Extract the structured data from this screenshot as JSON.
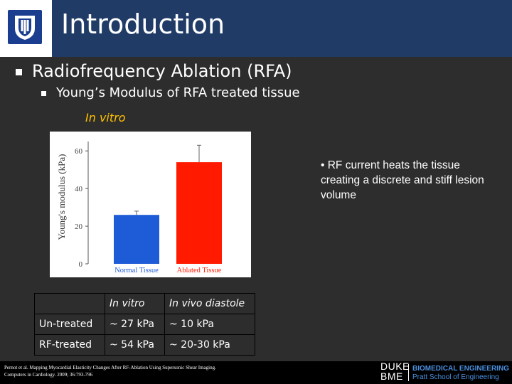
{
  "header": {
    "title": "Introduction"
  },
  "bullets": {
    "level1": "Radiofrequency Ablation (RFA)",
    "level2": "Young’s Modulus of RFA treated tissue"
  },
  "figure_label": "In vitro",
  "chart_data": {
    "type": "bar",
    "categories": [
      "Normal Tissue",
      "Ablated Tissue"
    ],
    "values": [
      26,
      54
    ],
    "error_top": [
      28,
      63
    ],
    "bar_colors": [
      "#1e5bd6",
      "#ff1a00"
    ],
    "ylabel": "Young's modulus (kPa)",
    "yticks": [
      0,
      20,
      40,
      60
    ],
    "ylim": [
      0,
      65
    ]
  },
  "note": "• RF current heats the tissue creating a discrete and stiff lesion volume",
  "table": {
    "header": [
      "",
      "In vitro",
      "In vivo diastole"
    ],
    "rows": [
      [
        "Un-treated",
        "~ 27 kPa",
        "~ 10 kPa"
      ],
      [
        "RF-treated",
        "~ 54 kPa",
        "~ 20-30 kPa"
      ]
    ]
  },
  "footer": {
    "citation_line1": "Pernot et al. Mapping Myocardial Elasticity Changes After RF-Ablation Using Supersonic Shear Imaging.",
    "citation_line2": "Computers in Cardiology. 2009; 36:793-796",
    "duke_line1": "DUKE",
    "duke_line2": "BME",
    "bme_title": "BIOMEDICAL ENGINEERING",
    "bme_sub": "Pratt School of Engineering"
  }
}
